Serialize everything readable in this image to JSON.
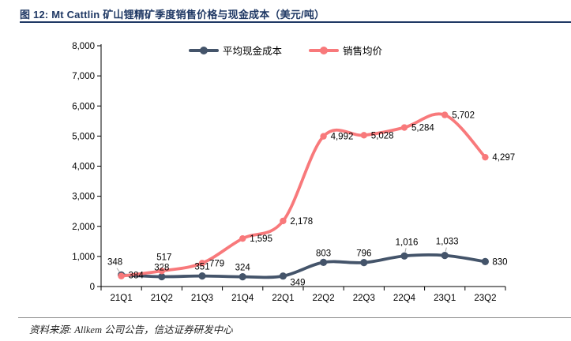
{
  "figure": {
    "title": "图 12:  Mt Cattlin 矿山锂精矿季度销售价格与现金成本（美元/吨）",
    "source": "资料来源: Allkem 公司公告，信达证券研发中心"
  },
  "colors": {
    "title_navy": "#1F3864",
    "axis": "#000000",
    "cash_cost_line": "#44546A",
    "price_line": "#F8797B",
    "leader_gray": "#A6A6A6",
    "source_rule_gray": "#8A8A8A"
  },
  "chart_data": {
    "type": "line",
    "title": "Mt Cattlin 矿山锂精矿季度销售价格与现金成本（美元/吨）",
    "categories": [
      "21Q1",
      "21Q2",
      "21Q3",
      "21Q4",
      "22Q1",
      "22Q2",
      "22Q3",
      "22Q4",
      "23Q1",
      "23Q2"
    ],
    "series": [
      {
        "name": "平均现金成本",
        "color": "#44546A",
        "values": [
          384,
          328,
          351,
          324,
          349,
          803,
          796,
          1016,
          1033,
          830
        ],
        "label_placements": [
          "right",
          "above",
          "above",
          "above",
          "below-right",
          "above",
          "above",
          "above-leader",
          "above-leader",
          "right"
        ]
      },
      {
        "name": "销售均价",
        "color": "#F8797B",
        "values": [
          348,
          517,
          779,
          1595,
          2178,
          4992,
          5028,
          5284,
          5702,
          4297
        ],
        "label_placements": [
          "above-left-leader",
          "above-leader",
          "right",
          "right",
          "right",
          "right",
          "right",
          "right",
          "right",
          "right"
        ]
      }
    ],
    "ylim": [
      0,
      8000
    ],
    "ytick_step": 1000,
    "grid": false,
    "legend_position": "top",
    "xlabel": "",
    "ylabel": ""
  }
}
